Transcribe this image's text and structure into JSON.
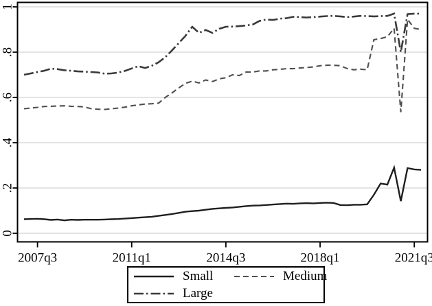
{
  "chart_data": {
    "type": "line",
    "title": "",
    "xlabel": "",
    "ylabel": "",
    "x_frequency": "quarterly",
    "x_start": "2007q1",
    "x_end": "2021q4",
    "x_tick_labels": [
      "2007q3",
      "2011q1",
      "2014q3",
      "2018q1",
      "2021q3"
    ],
    "x_tick_indices": [
      2,
      16,
      30,
      44,
      58
    ],
    "y_ticks": {
      "labels": [
        "0",
        ".2",
        ".4",
        ".6",
        ".8",
        "1"
      ],
      "values": [
        0,
        0.2,
        0.4,
        0.6,
        0.8,
        1
      ]
    },
    "ylim": [
      0,
      1
    ],
    "grid": "horizontal",
    "legend_position": "bottom-center",
    "colors": {
      "background": "#ffffff",
      "axis": "#000000",
      "gridline": "#c9c9c9",
      "small": "#1f1f1f",
      "medium": "#4f4f4f",
      "large": "#3a3a3a"
    },
    "series": [
      {
        "name": "Small",
        "line_style": "solid",
        "color": "#1f1f1f",
        "values": [
          0.062,
          0.063,
          0.064,
          0.062,
          0.059,
          0.061,
          0.057,
          0.06,
          0.059,
          0.06,
          0.06,
          0.06,
          0.061,
          0.062,
          0.063,
          0.065,
          0.067,
          0.069,
          0.071,
          0.073,
          0.077,
          0.081,
          0.085,
          0.09,
          0.095,
          0.098,
          0.1,
          0.104,
          0.108,
          0.11,
          0.112,
          0.114,
          0.117,
          0.12,
          0.122,
          0.123,
          0.125,
          0.127,
          0.129,
          0.131,
          0.13,
          0.132,
          0.133,
          0.132,
          0.134,
          0.135,
          0.134,
          0.125,
          0.124,
          0.126,
          0.126,
          0.128,
          0.17,
          0.22,
          0.215,
          0.29,
          0.142,
          0.288,
          0.282,
          0.28
        ]
      },
      {
        "name": "Medium",
        "line_style": "dashed",
        "color": "#4f4f4f",
        "values": [
          0.55,
          0.553,
          0.556,
          0.56,
          0.561,
          0.562,
          0.563,
          0.561,
          0.56,
          0.558,
          0.55,
          0.548,
          0.547,
          0.55,
          0.553,
          0.557,
          0.563,
          0.567,
          0.571,
          0.572,
          0.575,
          0.6,
          0.62,
          0.642,
          0.662,
          0.672,
          0.664,
          0.677,
          0.67,
          0.682,
          0.687,
          0.7,
          0.697,
          0.712,
          0.712,
          0.717,
          0.717,
          0.722,
          0.724,
          0.727,
          0.727,
          0.73,
          0.732,
          0.735,
          0.74,
          0.742,
          0.742,
          0.74,
          0.728,
          0.722,
          0.725,
          0.722,
          0.855,
          0.86,
          0.868,
          0.905,
          0.535,
          0.945,
          0.905,
          0.9
        ]
      },
      {
        "name": "Large",
        "line_style": "dash-dot",
        "color": "#3a3a3a",
        "values": [
          0.7,
          0.706,
          0.712,
          0.718,
          0.727,
          0.725,
          0.72,
          0.718,
          0.715,
          0.714,
          0.712,
          0.71,
          0.705,
          0.706,
          0.71,
          0.717,
          0.728,
          0.738,
          0.73,
          0.74,
          0.755,
          0.778,
          0.808,
          0.84,
          0.872,
          0.912,
          0.885,
          0.898,
          0.885,
          0.903,
          0.912,
          0.913,
          0.915,
          0.918,
          0.922,
          0.938,
          0.944,
          0.942,
          0.948,
          0.95,
          0.956,
          0.955,
          0.953,
          0.955,
          0.957,
          0.959,
          0.96,
          0.958,
          0.955,
          0.957,
          0.96,
          0.959,
          0.958,
          0.959,
          0.96,
          0.97,
          0.8,
          0.968,
          0.97,
          0.97
        ]
      }
    ]
  },
  "legend": {
    "items": [
      {
        "label": "Small",
        "style": "solid"
      },
      {
        "label": "Medium",
        "style": "dashed"
      },
      {
        "label": "Large",
        "style": "dash-dot"
      }
    ]
  }
}
